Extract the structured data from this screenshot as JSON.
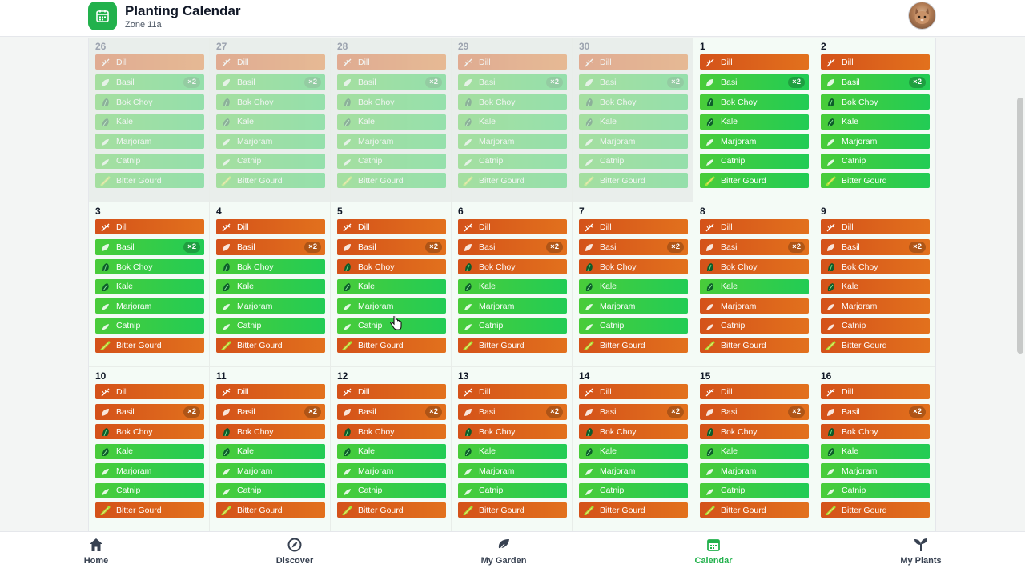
{
  "header": {
    "title": "Planting Calendar",
    "subtitle": "Zone 11a",
    "app_icon": "calendar-icon",
    "avatar": "user-avatar"
  },
  "colors": {
    "accent": "#22b14c",
    "plant_due": "#e2711d",
    "plant_ok": "#22cc55"
  },
  "plants": [
    {
      "name": "Dill",
      "icon": "dill-icon"
    },
    {
      "name": "Basil",
      "icon": "basil-icon",
      "badge": "×2"
    },
    {
      "name": "Bok Choy",
      "icon": "bok-choy-icon"
    },
    {
      "name": "Kale",
      "icon": "kale-icon"
    },
    {
      "name": "Marjoram",
      "icon": "marjoram-icon"
    },
    {
      "name": "Catnip",
      "icon": "catnip-icon"
    },
    {
      "name": "Bitter Gourd",
      "icon": "bitter-gourd-icon"
    }
  ],
  "weeks": [
    {
      "days": [
        {
          "num": "26",
          "past": true,
          "status": [
            "orange",
            "green",
            "green",
            "green",
            "green",
            "green",
            "green"
          ]
        },
        {
          "num": "27",
          "past": true,
          "status": [
            "orange",
            "green",
            "green",
            "green",
            "green",
            "green",
            "green"
          ]
        },
        {
          "num": "28",
          "past": true,
          "status": [
            "orange",
            "green",
            "green",
            "green",
            "green",
            "green",
            "green"
          ]
        },
        {
          "num": "29",
          "past": true,
          "status": [
            "orange",
            "green",
            "green",
            "green",
            "green",
            "green",
            "green"
          ]
        },
        {
          "num": "30",
          "past": true,
          "status": [
            "orange",
            "green",
            "green",
            "green",
            "green",
            "green",
            "green"
          ]
        },
        {
          "num": "1",
          "past": false,
          "status": [
            "orange",
            "green",
            "green",
            "green",
            "green",
            "green",
            "green"
          ]
        },
        {
          "num": "2",
          "past": false,
          "status": [
            "orange",
            "green",
            "green",
            "green",
            "green",
            "green",
            "green"
          ]
        }
      ]
    },
    {
      "days": [
        {
          "num": "3",
          "past": false,
          "status": [
            "orange",
            "green",
            "green",
            "green",
            "green",
            "green",
            "orange"
          ]
        },
        {
          "num": "4",
          "past": false,
          "status": [
            "orange",
            "orange",
            "green",
            "green",
            "green",
            "green",
            "orange"
          ]
        },
        {
          "num": "5",
          "past": false,
          "status": [
            "orange",
            "orange",
            "orange",
            "green",
            "green",
            "green",
            "orange"
          ]
        },
        {
          "num": "6",
          "past": false,
          "status": [
            "orange",
            "orange",
            "orange",
            "green",
            "green",
            "green",
            "orange"
          ]
        },
        {
          "num": "7",
          "past": false,
          "status": [
            "orange",
            "orange",
            "orange",
            "green",
            "green",
            "green",
            "orange"
          ]
        },
        {
          "num": "8",
          "past": false,
          "status": [
            "orange",
            "orange",
            "orange",
            "green",
            "orange",
            "orange",
            "orange"
          ]
        },
        {
          "num": "9",
          "past": false,
          "status": [
            "orange",
            "orange",
            "orange",
            "orange",
            "orange",
            "orange",
            "orange"
          ]
        }
      ]
    },
    {
      "days": [
        {
          "num": "10",
          "past": false,
          "status": [
            "orange",
            "orange",
            "orange",
            "green",
            "green",
            "green",
            "orange"
          ]
        },
        {
          "num": "11",
          "past": false,
          "status": [
            "orange",
            "orange",
            "orange",
            "green",
            "green",
            "green",
            "orange"
          ]
        },
        {
          "num": "12",
          "past": false,
          "status": [
            "orange",
            "orange",
            "orange",
            "green",
            "green",
            "green",
            "orange"
          ]
        },
        {
          "num": "13",
          "past": false,
          "status": [
            "orange",
            "orange",
            "orange",
            "green",
            "green",
            "green",
            "orange"
          ]
        },
        {
          "num": "14",
          "past": false,
          "status": [
            "orange",
            "orange",
            "orange",
            "green",
            "green",
            "green",
            "orange"
          ]
        },
        {
          "num": "15",
          "past": false,
          "status": [
            "orange",
            "orange",
            "orange",
            "green",
            "green",
            "green",
            "orange"
          ]
        },
        {
          "num": "16",
          "past": false,
          "status": [
            "orange",
            "orange",
            "orange",
            "green",
            "green",
            "green",
            "orange"
          ]
        }
      ]
    }
  ],
  "nav": {
    "items": [
      {
        "label": "Home",
        "icon": "home-icon",
        "active": false
      },
      {
        "label": "Discover",
        "icon": "compass-icon",
        "active": false
      },
      {
        "label": "My Garden",
        "icon": "leaf-icon",
        "active": false
      },
      {
        "label": "Calendar",
        "icon": "calendar-icon",
        "active": true
      },
      {
        "label": "My Plants",
        "icon": "sprout-icon",
        "active": false
      }
    ]
  }
}
